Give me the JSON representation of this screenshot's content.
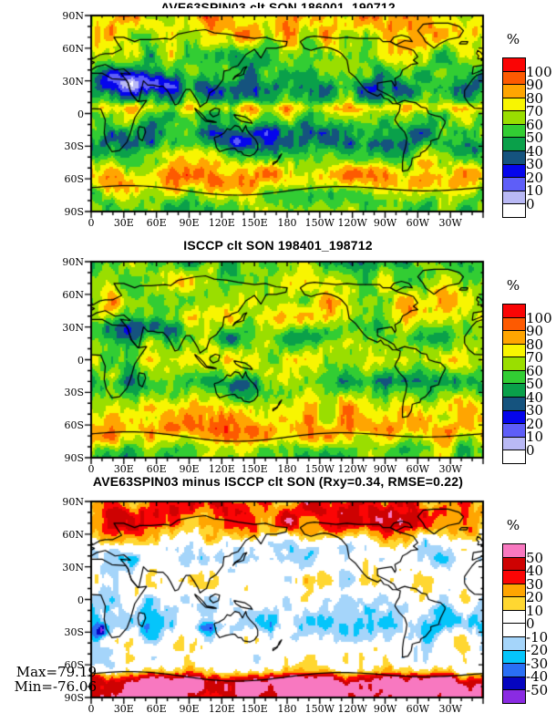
{
  "figure": {
    "panels": [
      {
        "id": "model",
        "title": "AVE63SPIN03 clt SON 186001_190712",
        "unit": "%",
        "colorbar_colors": [
          "#fa0505",
          "#fd5a01",
          "#ffa501",
          "#f8f501",
          "#9ade00",
          "#32cd33",
          "#0aa04a",
          "#15537e",
          "#0505ec",
          "#5e5ef8",
          "#b9b9f5",
          "#ffffff"
        ],
        "colorbar_labels": [
          "100",
          "90",
          "80",
          "70",
          "60",
          "50",
          "40",
          "30",
          "20",
          "10",
          "0"
        ],
        "lat_labels": [
          "90N",
          "60N",
          "30N",
          "0",
          "30S",
          "60S",
          "90S"
        ],
        "lon_labels": [
          "0",
          "30E",
          "60E",
          "90E",
          "120E",
          "150E",
          "180",
          "150W",
          "120W",
          "90W",
          "60W",
          "30W"
        ]
      },
      {
        "id": "isccp",
        "title": "ISCCP clt SON 198401_198712",
        "unit": "%",
        "colorbar_colors": [
          "#fa0505",
          "#fd5a01",
          "#ffa501",
          "#f8f501",
          "#9ade00",
          "#32cd33",
          "#0aa04a",
          "#15537e",
          "#0505ec",
          "#5e5ef8",
          "#b9b9f5",
          "#ffffff"
        ],
        "colorbar_labels": [
          "100",
          "90",
          "80",
          "70",
          "60",
          "50",
          "40",
          "30",
          "20",
          "10",
          "0"
        ],
        "lat_labels": [
          "90N",
          "60N",
          "30N",
          "0",
          "30S",
          "60S",
          "90S"
        ],
        "lon_labels": [
          "0",
          "30E",
          "60E",
          "90E",
          "120E",
          "150E",
          "180",
          "150W",
          "120W",
          "90W",
          "60W",
          "30W"
        ]
      },
      {
        "id": "difference",
        "title": "AVE63SPIN03 minus ISCCP clt SON (Rxy=0.34, RMSE=0.22)",
        "unit": "%",
        "colorbar_colors": [
          "#f878c0",
          "#ce0202",
          "#fb0505",
          "#ffa501",
          "#ffd731",
          "#ffffff",
          "#ffffff",
          "#a5d5fa",
          "#05c5fa",
          "#2a6ff5",
          "#0505c0",
          "#8a2be2"
        ],
        "colorbar_labels": [
          "50",
          "40",
          "30",
          "20",
          "10",
          "0",
          "-10",
          "-20",
          "-30",
          "-40",
          "-50"
        ],
        "lat_labels": [
          "90N",
          "60N",
          "30N",
          "0",
          "30S",
          "60S",
          "90S"
        ],
        "lon_labels": [
          "0",
          "30E",
          "60E",
          "90E",
          "120E",
          "150E",
          "180",
          "150W",
          "120W",
          "90W",
          "60W",
          "30W"
        ]
      }
    ],
    "annotations": {
      "max_label": "Max=79.19",
      "min_label": "Min=-76.06"
    }
  },
  "chart_data": [
    {
      "type": "heatmap",
      "title": "AVE63SPIN03 clt SON 186001_190712",
      "variable": "clt",
      "season": "SON",
      "period": "186001_190712",
      "unit": "%",
      "levels": [
        0,
        10,
        20,
        30,
        40,
        50,
        60,
        70,
        80,
        90,
        100
      ],
      "palette_high_to_low": [
        "#fa0505",
        "#fd5a01",
        "#ffa501",
        "#f8f501",
        "#9ade00",
        "#32cd33",
        "#0aa04a",
        "#15537e",
        "#0505ec",
        "#5e5ef8",
        "#b9b9f5",
        "#ffffff"
      ],
      "x_axis_ticks": [
        "0",
        "30E",
        "60E",
        "90E",
        "120E",
        "150E",
        "180",
        "150W",
        "120W",
        "90W",
        "60W",
        "30W"
      ],
      "y_axis_ticks": [
        "90N",
        "60N",
        "30N",
        "0",
        "30S",
        "60S",
        "90S"
      ]
    },
    {
      "type": "heatmap",
      "title": "ISCCP clt SON 198401_198712",
      "variable": "clt",
      "season": "SON",
      "period": "198401_198712",
      "unit": "%",
      "levels": [
        0,
        10,
        20,
        30,
        40,
        50,
        60,
        70,
        80,
        90,
        100
      ],
      "palette_high_to_low": [
        "#fa0505",
        "#fd5a01",
        "#ffa501",
        "#f8f501",
        "#9ade00",
        "#32cd33",
        "#0aa04a",
        "#15537e",
        "#0505ec",
        "#5e5ef8",
        "#b9b9f5",
        "#ffffff"
      ],
      "x_axis_ticks": [
        "0",
        "30E",
        "60E",
        "90E",
        "120E",
        "150E",
        "180",
        "150W",
        "120W",
        "90W",
        "60W",
        "30W"
      ],
      "y_axis_ticks": [
        "90N",
        "60N",
        "30N",
        "0",
        "30S",
        "60S",
        "90S"
      ]
    },
    {
      "type": "heatmap",
      "title": "AVE63SPIN03 minus ISCCP clt SON (Rxy=0.34, RMSE=0.22)",
      "variable": "clt difference",
      "season": "SON",
      "unit": "%",
      "levels": [
        -50,
        -40,
        -30,
        -20,
        -10,
        0,
        10,
        20,
        30,
        40,
        50
      ],
      "palette_high_to_low": [
        "#f878c0",
        "#ce0202",
        "#fb0505",
        "#ffa501",
        "#ffd731",
        "#ffffff",
        "#ffffff",
        "#a5d5fa",
        "#05c5fa",
        "#2a6ff5",
        "#0505c0",
        "#8a2be2"
      ],
      "stats": {
        "Rxy": 0.34,
        "RMSE": 0.22,
        "max": 79.19,
        "min": -76.06
      },
      "x_axis_ticks": [
        "0",
        "30E",
        "60E",
        "90E",
        "120E",
        "150E",
        "180",
        "150W",
        "120W",
        "90W",
        "60W",
        "30W"
      ],
      "y_axis_ticks": [
        "90N",
        "60N",
        "30N",
        "0",
        "30S",
        "60S",
        "90S"
      ]
    }
  ]
}
